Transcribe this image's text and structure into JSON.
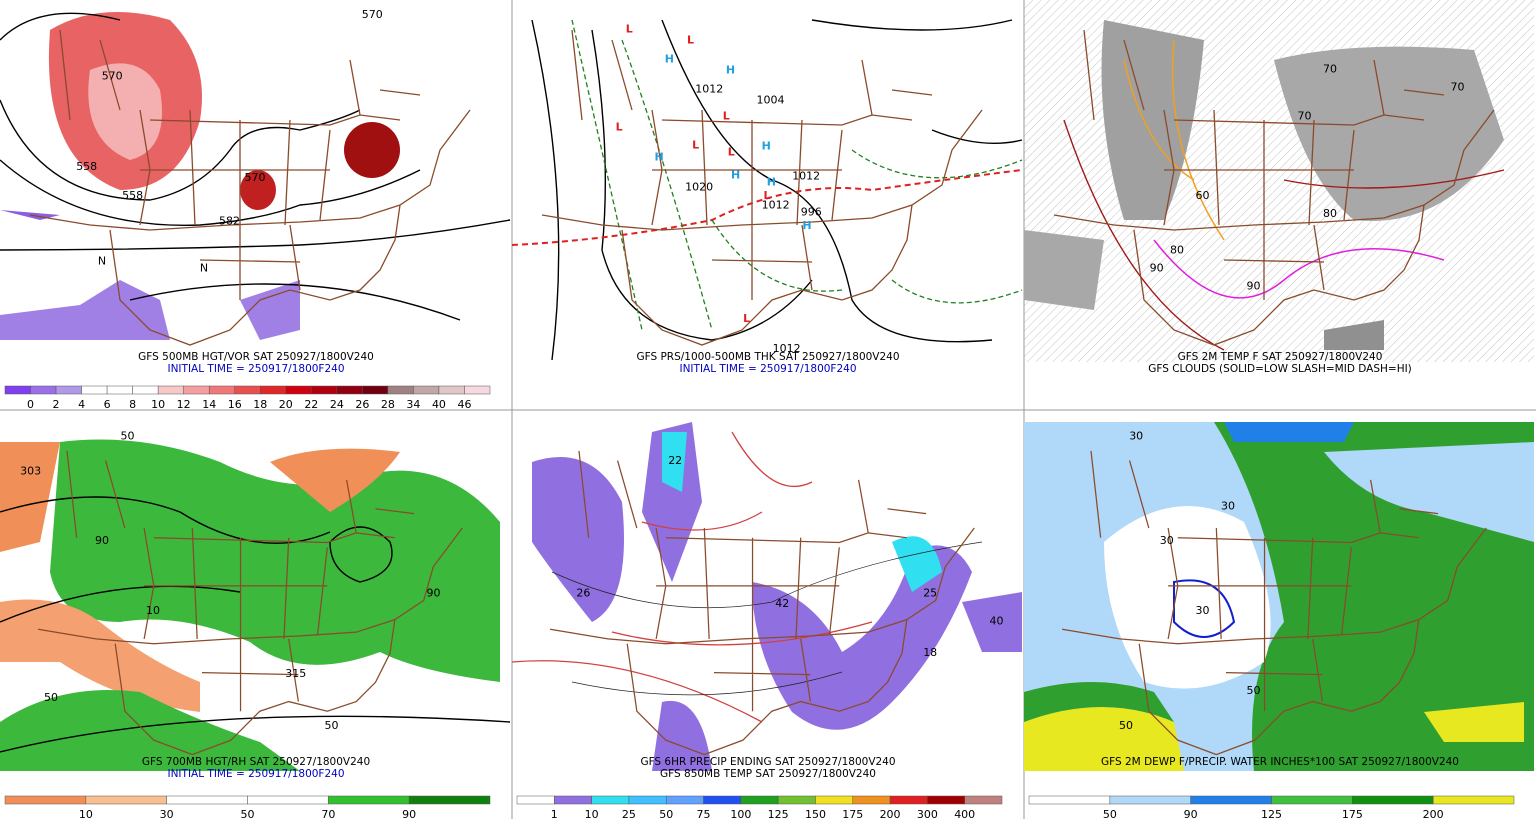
{
  "panels": [
    {
      "caption": [
        "GFS 500MB HGT/VOR SAT 250927/1800V240",
        "INITIAL TIME = 250917/1800F240"
      ],
      "colorbar": {
        "labels": [
          "0",
          "2",
          "4",
          "6",
          "8",
          "10",
          "12",
          "14",
          "16",
          "18",
          "20",
          "22",
          "24",
          "26",
          "28",
          "34",
          "40",
          "46"
        ],
        "colors": [
          "#8040f0",
          "#9a70e8",
          "#b09ae8",
          "#ffffff",
          "#ffffff",
          "#ffffff",
          "#f8c8c8",
          "#f4a0a0",
          "#f07878",
          "#e85050",
          "#e02828",
          "#d00010",
          "#b00010",
          "#900010",
          "#700010",
          "#a08080",
          "#c0a8a8",
          "#e0c8c8",
          "#f8d8e0"
        ]
      },
      "map_labels": [
        "558",
        "570",
        "558",
        "570",
        "582",
        "570",
        "N",
        "N"
      ]
    },
    {
      "caption": [
        "GFS PRS/1000-500MB THK SAT 250927/1800V240",
        "INITIAL TIME = 250917/1800F240"
      ],
      "map_labels": [
        "L",
        "L",
        "L",
        "L",
        "L",
        "L",
        "L",
        "L",
        "H",
        "H",
        "H",
        "H",
        "H",
        "H",
        "H",
        "1012",
        "1012",
        "1004",
        "1020",
        "1012",
        "1012",
        "996"
      ]
    },
    {
      "caption": [
        "GFS 2M TEMP F SAT 250927/1800V240",
        "GFS CLOUDS (SOLID=LOW SLASH=MID DASH=HI)"
      ],
      "map_labels": [
        "70",
        "70",
        "80",
        "80",
        "90",
        "90",
        "60",
        "70"
      ]
    },
    {
      "caption": [
        "GFS 700MB HGT/RH SAT 250927/1800V240",
        "INITIAL TIME = 250917/1800F240"
      ],
      "colorbar": {
        "labels": [
          "10",
          "30",
          "50",
          "70",
          "90"
        ],
        "colors": [
          "#f09058",
          "#f8c090",
          "#ffffff",
          "#ffffff",
          "#30c030",
          "#108010"
        ]
      },
      "map_labels": [
        "50",
        "90",
        "303",
        "315",
        "50",
        "50",
        "90",
        "10"
      ]
    },
    {
      "caption": [
        "GFS 6HR PRECIP ENDING SAT 250927/1800V240",
        "GFS 850MB TEMP SAT 250927/1800V240"
      ],
      "colorbar": {
        "labels": [
          "1",
          "10",
          "25",
          "50",
          "75",
          "100",
          "125",
          "150",
          "175",
          "200",
          "300",
          "400"
        ],
        "colors": [
          "#ffffff",
          "#9070e0",
          "#30e0f0",
          "#40c0ff",
          "#60a0ff",
          "#2050f0",
          "#20a020",
          "#70c030",
          "#f0e020",
          "#f09020",
          "#e02020",
          "#a00000",
          "#c08080"
        ]
      },
      "map_labels": [
        "42",
        "25",
        "40",
        "18",
        "26",
        "22"
      ]
    },
    {
      "caption": [
        "GFS 2M DEWP F/PRECIP. WATER INCHES*100 SAT 250927/1800V240"
      ],
      "colorbar": {
        "labels": [
          "50",
          "90",
          "125",
          "175",
          "200"
        ],
        "colors": [
          "#ffffff",
          "#b0d8f8",
          "#2080e8",
          "#40c040",
          "#109010",
          "#e8e820"
        ]
      },
      "map_labels": [
        "30",
        "30",
        "30",
        "50",
        "50",
        "30"
      ]
    }
  ]
}
